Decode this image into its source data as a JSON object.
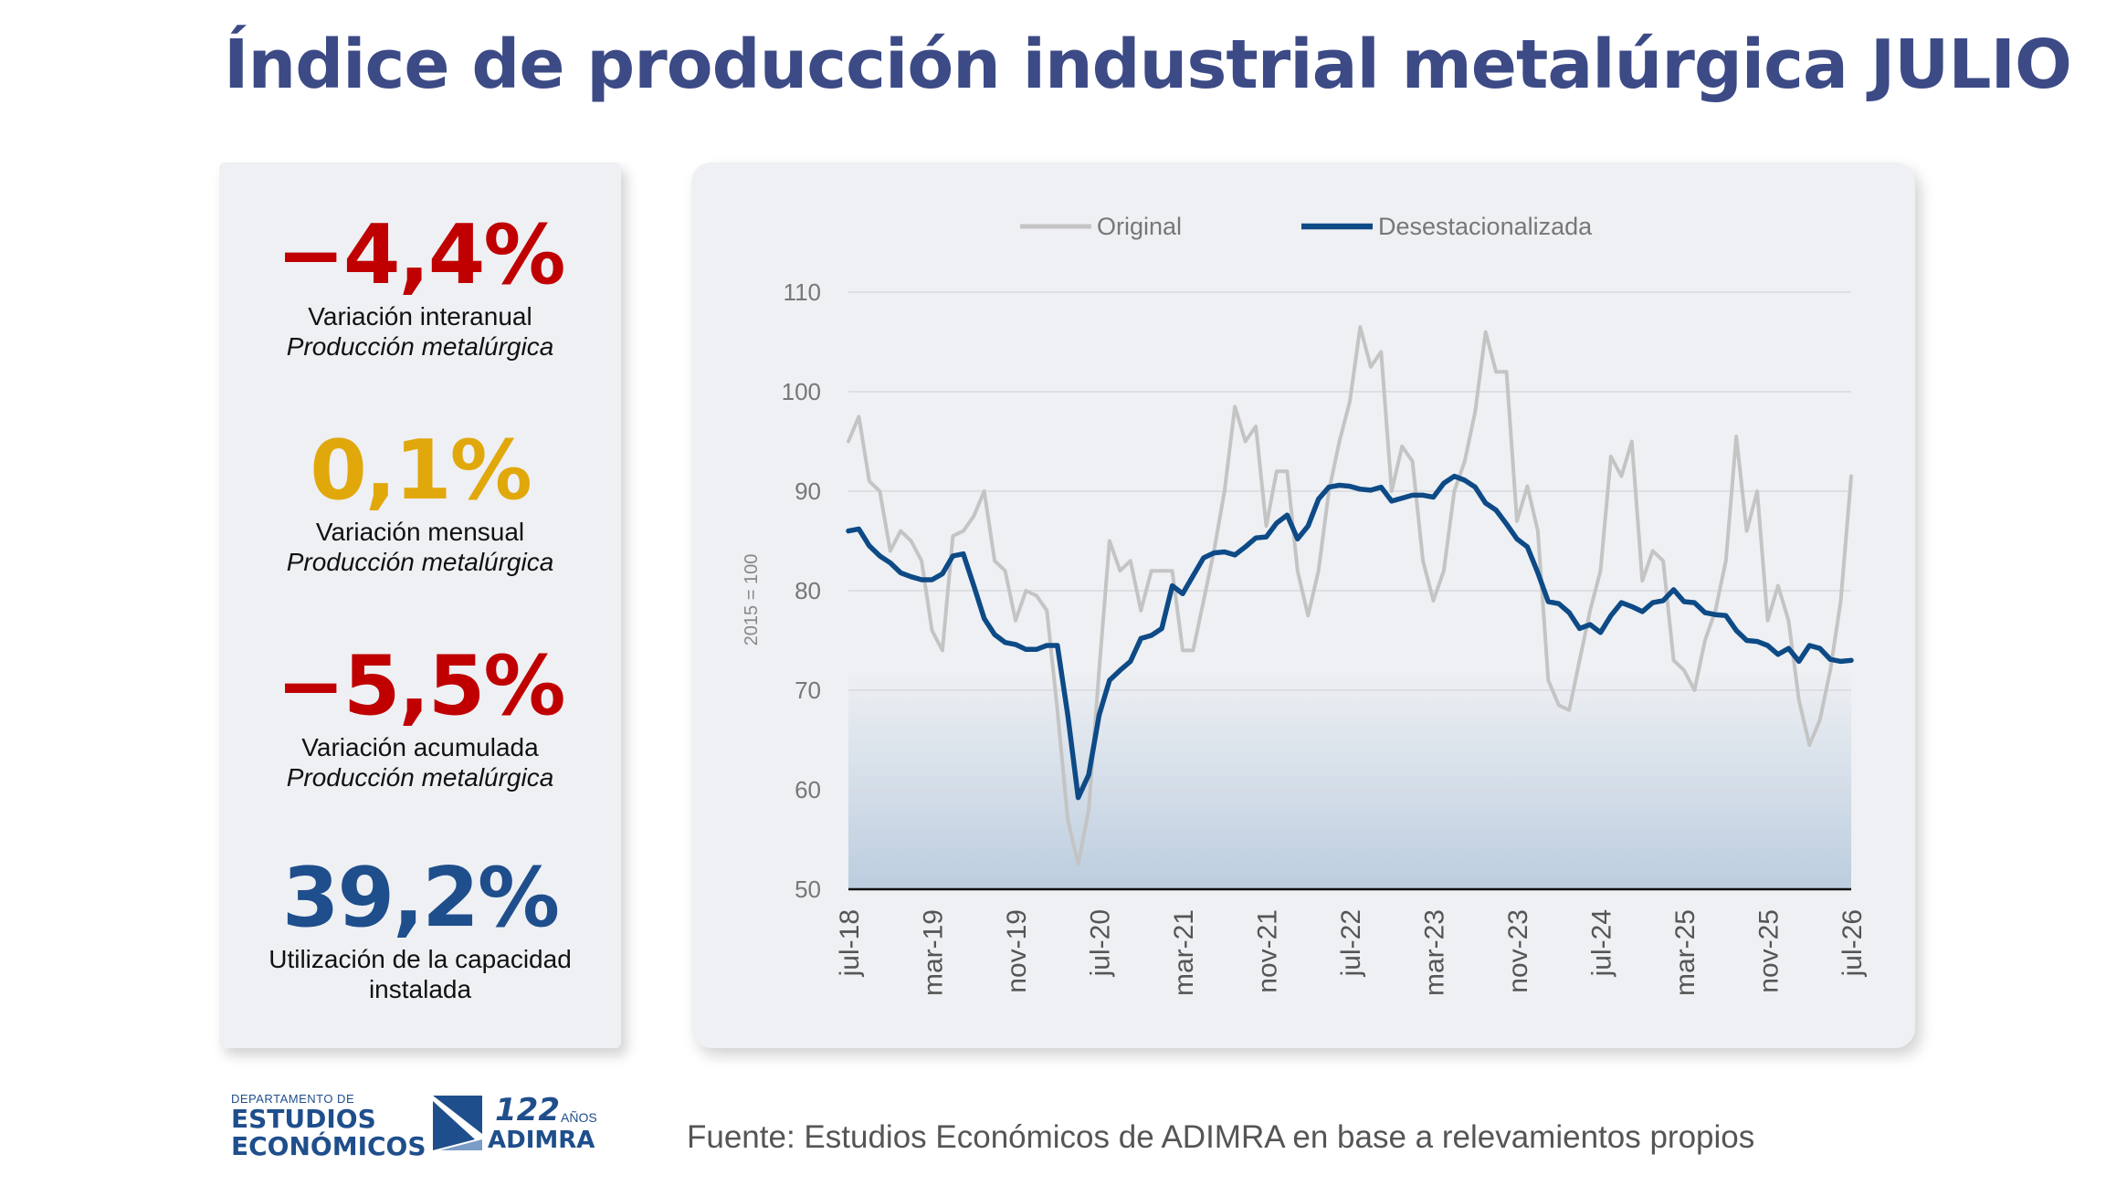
{
  "title": "Índice de producción industrial metalúrgica JULIO",
  "kpis": [
    {
      "value": "−4,4%",
      "label": "Variación interanual",
      "sub": "Producción metalúrgica",
      "color": "#c00000"
    },
    {
      "value": "0,1%",
      "label": "Variación mensual",
      "sub": "Producción metalúrgica",
      "color": "#e1a80c"
    },
    {
      "value": "−5,5%",
      "label": "Variación acumulada",
      "sub": "Producción metalúrgica",
      "color": "#c00000"
    },
    {
      "value": "39,2%",
      "label": "Utilización de la capacidad",
      "sub": "instalada",
      "color": "#1f4e8c"
    }
  ],
  "footer": {
    "source": "Fuente: Estudios Económicos de ADIMRA en base a relevamientos propios",
    "dept_small": "DEPARTAMENTO DE",
    "dept_line1": "ESTUDIOS",
    "dept_line2": "ECONÓMICOS",
    "adimra_years": "122",
    "adimra_anos": "AÑOS",
    "adimra_name": "ADIMRA"
  },
  "chart_data": {
    "type": "line",
    "title": "",
    "ylabel": "2015 = 100",
    "ylim": [
      50,
      110
    ],
    "yticks": [
      50,
      60,
      70,
      80,
      90,
      100,
      110
    ],
    "grid": true,
    "legend_position": "top",
    "x_tick_labels": [
      "jul-18",
      "mar-19",
      "nov-19",
      "jul-20",
      "mar-21",
      "nov-21",
      "jul-22",
      "mar-23",
      "nov-23",
      "jul-24",
      "mar-25",
      "nov-25",
      "jul-26"
    ],
    "x_start": "jul-18",
    "x_end": "jul-26",
    "series": [
      {
        "name": "Original",
        "color": "#c4c4c4",
        "values": [
          95,
          97.5,
          91,
          90,
          84,
          86,
          85,
          83,
          76,
          74,
          85.5,
          86,
          87.5,
          90,
          83,
          82,
          77,
          80,
          79.5,
          78,
          68,
          57,
          52.5,
          58,
          72,
          85,
          82,
          83,
          78,
          82,
          82,
          82,
          74,
          74,
          79,
          84,
          90,
          98.5,
          95,
          96.5,
          86.5,
          92,
          92,
          82,
          77.5,
          82,
          90,
          95,
          99,
          106.5,
          102.5,
          104,
          90,
          94.5,
          93,
          83,
          79,
          82,
          90,
          93,
          98,
          106,
          102,
          102,
          87,
          90.5,
          86,
          71,
          68.5,
          68,
          73,
          78,
          82,
          93.5,
          91.5,
          95,
          81,
          84,
          83,
          73,
          72,
          70,
          75,
          78,
          83,
          95.5,
          86,
          90,
          77,
          80.5,
          77,
          69,
          64.5,
          67,
          72,
          79,
          91.5
        ]
      },
      {
        "name": "Desestacionalizada",
        "color": "#0d4a86",
        "values": [
          86,
          86.2,
          84.5,
          83.5,
          82.8,
          81.8,
          81.4,
          81.1,
          81.1,
          81.7,
          83.5,
          83.7,
          80.5,
          77.2,
          75.6,
          74.8,
          74.6,
          74.1,
          74.1,
          74.5,
          74.5,
          67.5,
          59.2,
          61.5,
          67.5,
          71,
          72,
          72.9,
          75.2,
          75.5,
          76.2,
          80.5,
          79.7,
          81.5,
          83.3,
          83.8,
          83.9,
          83.6,
          84.4,
          85.3,
          85.4,
          86.8,
          87.6,
          85.2,
          86.5,
          89.2,
          90.4,
          90.6,
          90.5,
          90.2,
          90.1,
          90.4,
          89,
          89.3,
          89.6,
          89.6,
          89.4,
          90.8,
          91.5,
          91.1,
          90.4,
          88.8,
          88.1,
          86.7,
          85.2,
          84.4,
          81.8,
          78.9,
          78.7,
          77.8,
          76.2,
          76.6,
          75.8,
          77.5,
          78.8,
          78.4,
          77.9,
          78.8,
          79,
          80.1,
          78.9,
          78.8,
          77.8,
          77.6,
          77.5,
          76,
          75,
          74.9,
          74.5,
          73.6,
          74.2,
          72.9,
          74.5,
          74.2,
          73.1,
          72.9,
          73
        ]
      }
    ]
  }
}
